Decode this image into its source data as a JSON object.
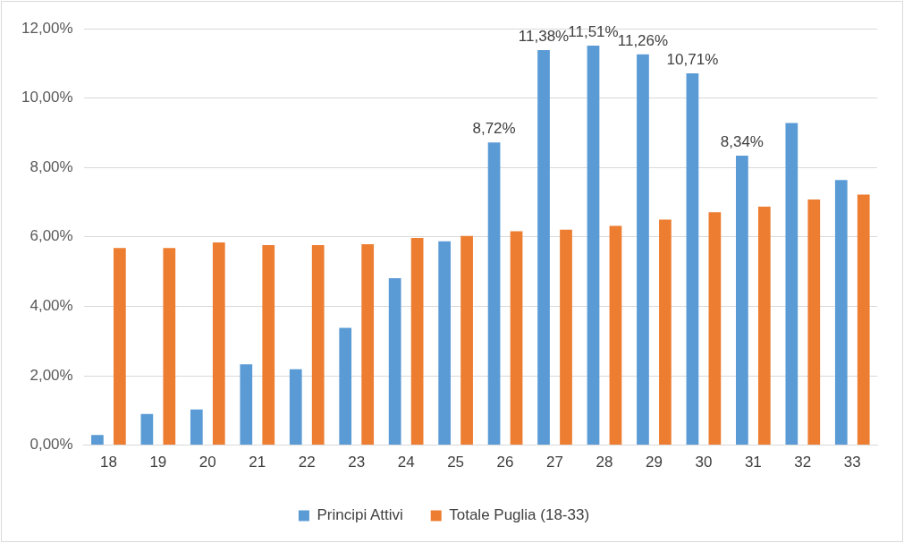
{
  "chart_data": {
    "type": "bar",
    "categories": [
      "18",
      "19",
      "20",
      "21",
      "22",
      "23",
      "24",
      "25",
      "26",
      "27",
      "28",
      "29",
      "30",
      "31",
      "32",
      "33"
    ],
    "series": [
      {
        "name": "Principi Attivi",
        "color": "#5b9bd5",
        "values": [
          0.29,
          0.9,
          1.03,
          2.33,
          2.19,
          3.38,
          4.81,
          5.87,
          8.72,
          11.38,
          11.51,
          11.26,
          10.71,
          8.34,
          9.28,
          7.64
        ],
        "value_labels": [
          null,
          null,
          null,
          null,
          null,
          null,
          null,
          null,
          "8,72%",
          "11,38%",
          "11,51%",
          "11,26%",
          "10,71%",
          "8,34%",
          null,
          null
        ]
      },
      {
        "name": "Totale Puglia (18-33)",
        "color": "#ed7d31",
        "values": [
          5.68,
          5.68,
          5.84,
          5.76,
          5.76,
          5.79,
          5.97,
          6.03,
          6.16,
          6.21,
          6.32,
          6.5,
          6.71,
          6.87,
          7.08,
          7.22
        ]
      }
    ],
    "ylim": [
      0,
      12
    ],
    "yticks": [
      {
        "value": 0,
        "label": "0,00%"
      },
      {
        "value": 2,
        "label": "2,00%"
      },
      {
        "value": 4,
        "label": "4,00%"
      },
      {
        "value": 6,
        "label": "6,00%"
      },
      {
        "value": 8,
        "label": "8,00%"
      },
      {
        "value": 10,
        "label": "10,00%"
      },
      {
        "value": 12,
        "label": "12,00%"
      }
    ],
    "grid": "y",
    "legend": "bottom"
  }
}
